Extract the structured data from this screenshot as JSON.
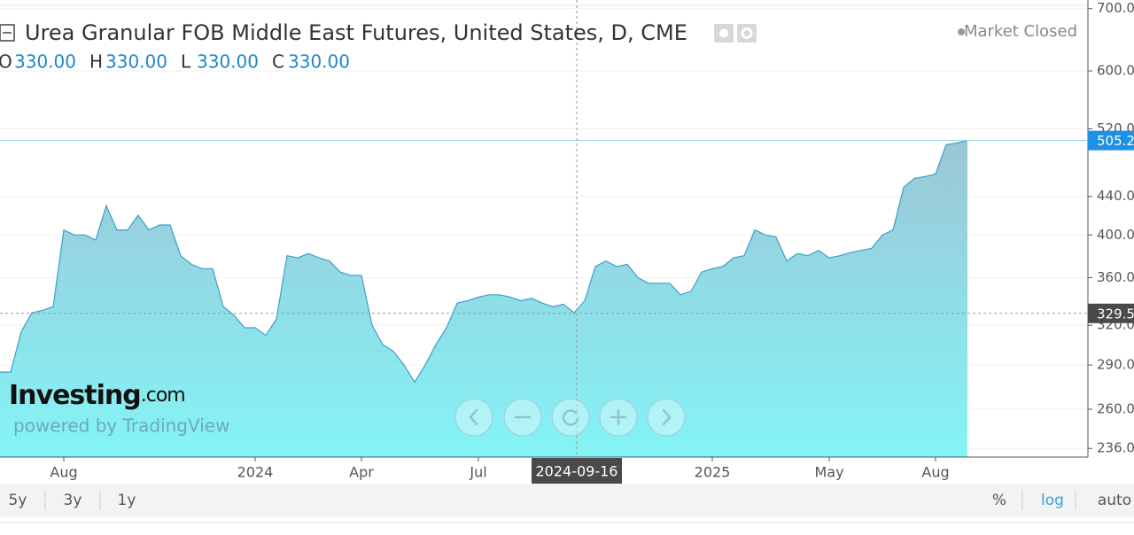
{
  "header": {
    "title": "Urea Granular FOB Middle East Futures, United States, D, CME",
    "status": "Market Closed",
    "ohlc": [
      {
        "label": "O",
        "value": "330.00"
      },
      {
        "label": "H",
        "value": "330.00"
      },
      {
        "label": "L",
        "value": "330.00"
      },
      {
        "label": "C",
        "value": "330.00"
      }
    ]
  },
  "watermark": {
    "brand": "Investing",
    "suffix": ".com",
    "powered": "powered by TradingView"
  },
  "toolbar": {
    "ranges": [
      "5y",
      "3y",
      "1y"
    ],
    "options": [
      "%",
      "log",
      "auto"
    ]
  },
  "chart_data": {
    "type": "area",
    "log_scale": true,
    "color": "#3d9fc9",
    "fill_top": "#9cc6d6",
    "fill_bottom": "#84f4f6",
    "categories": [
      null,
      null,
      null,
      null,
      null,
      null,
      "Aug",
      null,
      null,
      null,
      null,
      null,
      null,
      null,
      null,
      null,
      null,
      null,
      null,
      null,
      null,
      null,
      null,
      null,
      "2024",
      null,
      null,
      null,
      null,
      null,
      null,
      null,
      null,
      null,
      "Apr",
      null,
      null,
      null,
      null,
      null,
      null,
      null,
      null,
      null,
      null,
      "Jul",
      null,
      null,
      null,
      null,
      null,
      null,
      null,
      null,
      null,
      null,
      null,
      null,
      null,
      null,
      null,
      null,
      null,
      null,
      null,
      null,
      null,
      "2025",
      null,
      null,
      null,
      null,
      null,
      null,
      null,
      null,
      null,
      null,
      "May",
      null,
      null,
      null,
      null,
      null,
      null,
      null,
      null,
      null,
      "Aug",
      null,
      null,
      null
    ],
    "values": [
      285,
      285,
      315,
      330,
      332,
      335,
      405,
      400,
      400,
      395,
      430,
      405,
      405,
      420,
      405,
      410,
      410,
      380,
      372,
      368,
      368,
      335,
      328,
      318,
      318,
      312,
      325,
      380,
      378,
      382,
      378,
      375,
      365,
      362,
      362,
      320,
      305,
      300,
      290,
      278,
      290,
      305,
      318,
      338,
      340,
      343,
      345,
      345,
      343,
      340,
      342,
      338,
      335,
      337,
      330,
      340,
      370,
      375,
      370,
      372,
      360,
      355,
      355,
      355,
      345,
      348,
      365,
      368,
      370,
      378,
      380,
      405,
      400,
      398,
      375,
      382,
      380,
      385,
      378,
      380,
      383,
      385,
      387,
      400,
      405,
      450,
      460,
      462,
      465,
      500,
      502,
      505.2
    ],
    "ylim": [
      231,
      715
    ],
    "yticks": [
      {
        "value": 236,
        "label": "236.0"
      },
      {
        "value": 260,
        "label": "260.0"
      },
      {
        "value": 290,
        "label": "290.0"
      },
      {
        "value": 320,
        "label": "320.0"
      },
      {
        "value": 360,
        "label": "360.0"
      },
      {
        "value": 400,
        "label": "400.0"
      },
      {
        "value": 440,
        "label": "440.0"
      },
      {
        "value": 520,
        "label": "520.0"
      },
      {
        "value": 600,
        "label": "600.0"
      },
      {
        "value": 700,
        "label": "700.0"
      }
    ],
    "crosshair_y": 329.5,
    "crosshair_x_label": "2024-09-16"
  }
}
